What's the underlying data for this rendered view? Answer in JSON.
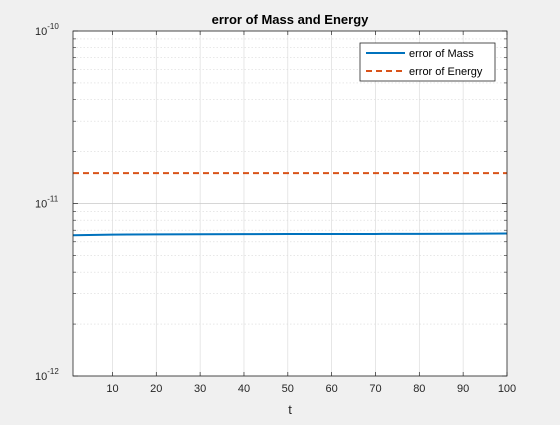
{
  "chart_data": {
    "type": "line",
    "title": "error of Mass and Energy",
    "xlabel": "t",
    "ylabel": "",
    "xlim": [
      1,
      100
    ],
    "ylim": [
      1e-12,
      1e-10
    ],
    "yscale": "log",
    "grid": true,
    "minor_grid": true,
    "legend_location": "top-right",
    "x_ticks": [
      10,
      20,
      30,
      40,
      50,
      60,
      70,
      80,
      90,
      100
    ],
    "y_ticks": [
      {
        "value": 1e-12,
        "base": "10",
        "exponent": "-12"
      },
      {
        "value": 1e-11,
        "base": "10",
        "exponent": "-11"
      },
      {
        "value": 1e-10,
        "base": "10",
        "exponent": "-10"
      }
    ],
    "series": [
      {
        "name": "error of Mass",
        "color": "#0072bd",
        "line_style": "solid",
        "x": [
          1,
          10,
          20,
          30,
          40,
          50,
          60,
          70,
          80,
          90,
          100
        ],
        "y": [
          6.55e-12,
          6.6e-12,
          6.62e-12,
          6.63e-12,
          6.64e-12,
          6.65e-12,
          6.66e-12,
          6.66e-12,
          6.67e-12,
          6.68e-12,
          6.7e-12
        ]
      },
      {
        "name": "error of Energy",
        "color": "#d95319",
        "line_style": "dashed",
        "x": [
          1,
          10,
          20,
          30,
          40,
          50,
          60,
          70,
          80,
          90,
          100
        ],
        "y": [
          1.5e-11,
          1.5e-11,
          1.5e-11,
          1.5e-11,
          1.5e-11,
          1.5e-11,
          1.5e-11,
          1.5e-11,
          1.5e-11,
          1.5e-11,
          1.5e-11
        ]
      }
    ]
  }
}
